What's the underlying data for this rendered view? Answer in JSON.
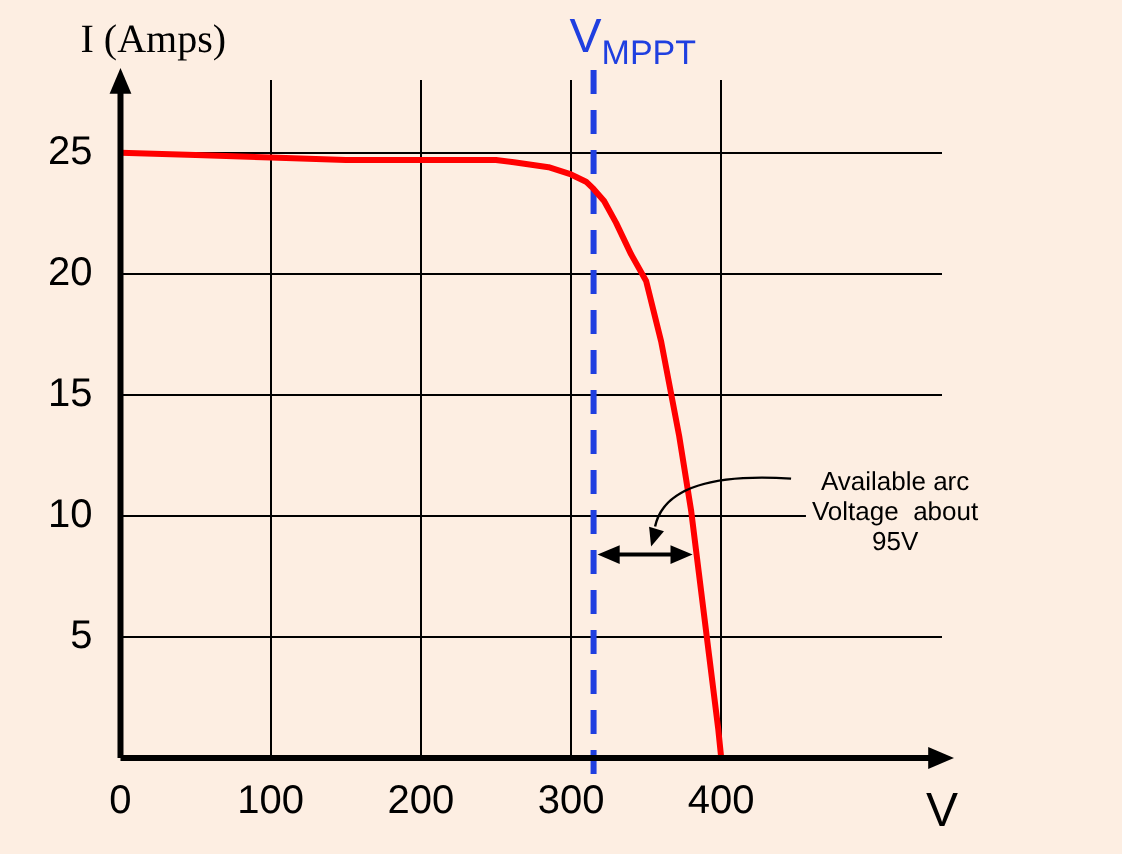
{
  "chart_data": {
    "type": "line",
    "xlabel": "V",
    "ylabel": "I (Amps)",
    "x": [
      0,
      50,
      100,
      150,
      200,
      250,
      262,
      285,
      300,
      310,
      315,
      322,
      330,
      340,
      350,
      360,
      372,
      380,
      385,
      392,
      398,
      400
    ],
    "series": [
      {
        "color": "#ff0000",
        "values": [
          25,
          24.9,
          24.8,
          24.7,
          24.7,
          24.7,
          24.6,
          24.4,
          24.1,
          23.8,
          23.5,
          23,
          22.1,
          20.8,
          19.7,
          17.2,
          13.3,
          10.2,
          7.7,
          4.2,
          1.2,
          0
        ]
      }
    ],
    "xlim": [
      0,
      547
    ],
    "ylim": [
      0,
      28
    ],
    "xticks": [
      0,
      100,
      200,
      300,
      400
    ],
    "yticks": [
      5,
      10,
      15,
      20,
      25
    ],
    "grid": true,
    "legend": false,
    "marker": "none",
    "line_style": "solid",
    "ref_lines": [
      {
        "axis": "x",
        "value": 315,
        "label": "V$_{MPPT}$",
        "color": "#1f3fe0",
        "line_style": "dashed"
      }
    ],
    "annotations": [
      "Available arc\nVoltage  about\n95V"
    ]
  }
}
